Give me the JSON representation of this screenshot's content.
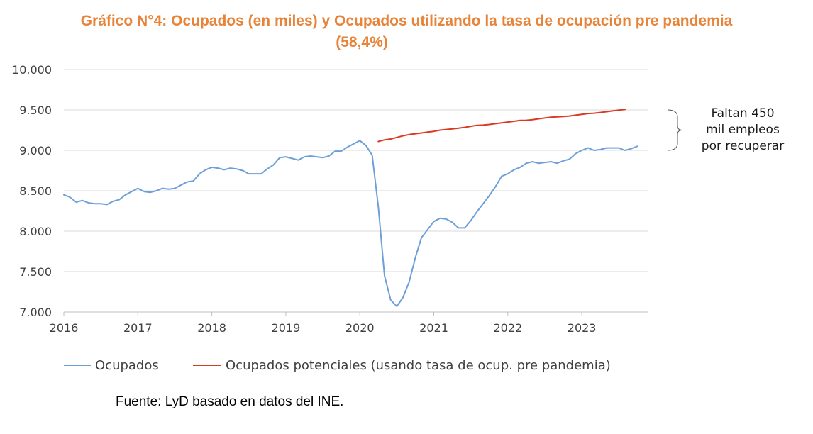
{
  "chart_data": {
    "type": "line",
    "title_line1": "Gráfico N°4: Ocupados (en miles) y Ocupados utilizando la tasa de ocupación pre pandemia",
    "title_line2": "(58,4%)",
    "xlabel": "",
    "ylabel": "",
    "ylim": [
      7000,
      10000
    ],
    "xlim": [
      2016.0,
      2023.9
    ],
    "y_ticks": [
      {
        "value": 7000,
        "label": "7.000"
      },
      {
        "value": 7500,
        "label": "7.500"
      },
      {
        "value": 8000,
        "label": "8.000"
      },
      {
        "value": 8500,
        "label": "8.500"
      },
      {
        "value": 9000,
        "label": "9.000"
      },
      {
        "value": 9500,
        "label": "9.500"
      },
      {
        "value": 10000,
        "label": "10.000"
      }
    ],
    "x_ticks": [
      {
        "value": 2016,
        "label": "2016"
      },
      {
        "value": 2017,
        "label": "2017"
      },
      {
        "value": 2018,
        "label": "2018"
      },
      {
        "value": 2019,
        "label": "2019"
      },
      {
        "value": 2020,
        "label": "2020"
      },
      {
        "value": 2021,
        "label": "2021"
      },
      {
        "value": 2022,
        "label": "2022"
      },
      {
        "value": 2023,
        "label": "2023"
      }
    ],
    "grid": true,
    "legend_position": "bottom",
    "series": [
      {
        "name": "Ocupados",
        "color": "#6F9FD8",
        "x_start": 2016.0,
        "x_step": 0.08333,
        "values": [
          8450,
          8420,
          8360,
          8380,
          8350,
          8340,
          8340,
          8330,
          8370,
          8390,
          8450,
          8490,
          8530,
          8490,
          8480,
          8500,
          8530,
          8520,
          8530,
          8570,
          8610,
          8620,
          8710,
          8760,
          8790,
          8780,
          8760,
          8780,
          8770,
          8750,
          8710,
          8710,
          8710,
          8770,
          8820,
          8910,
          8920,
          8900,
          8880,
          8920,
          8930,
          8920,
          8910,
          8930,
          8990,
          8990,
          9040,
          9080,
          9120,
          9060,
          8940,
          8300,
          7450,
          7150,
          7070,
          7180,
          7370,
          7670,
          7920,
          8020,
          8120,
          8160,
          8150,
          8110,
          8040,
          8040,
          8130,
          8240,
          8340,
          8440,
          8550,
          8680,
          8710,
          8760,
          8790,
          8840,
          8860,
          8840,
          8850,
          8860,
          8840,
          8870,
          8890,
          8960,
          9000,
          9030,
          9000,
          9010,
          9030,
          9030,
          9030,
          9000,
          9020,
          9050
        ]
      },
      {
        "name": "Ocupados potenciales (usando tasa de ocup. pre pandemia)",
        "color": "#D83A22",
        "x_start": 2020.25,
        "x_step": 0.08333,
        "values": [
          9110,
          9130,
          9140,
          9160,
          9180,
          9195,
          9205,
          9215,
          9225,
          9235,
          9250,
          9258,
          9266,
          9275,
          9284,
          9297,
          9310,
          9312,
          9320,
          9330,
          9340,
          9350,
          9360,
          9370,
          9372,
          9380,
          9390,
          9400,
          9410,
          9415,
          9418,
          9425,
          9435,
          9445,
          9455,
          9460,
          9468,
          9478,
          9488,
          9498,
          9505
        ]
      }
    ],
    "annotation": {
      "lines": [
        "Faltan 450",
        "mil empleos",
        "por recuperar"
      ],
      "y_top": 9500,
      "y_bottom": 9000
    },
    "source": "Fuente: LyD basado en datos del INE."
  }
}
